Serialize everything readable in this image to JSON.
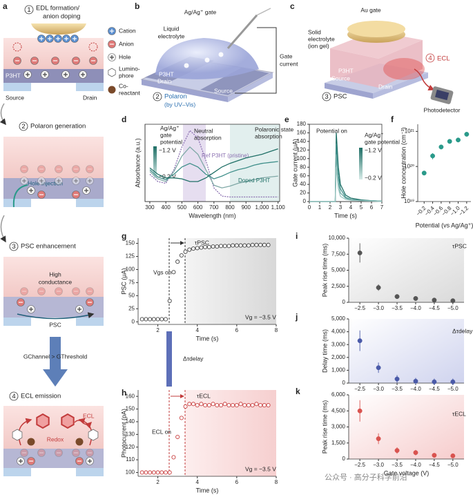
{
  "diagrams": {
    "panel_a": {
      "panel": "a",
      "steps": [
        {
          "number": "1",
          "title": [
            "EDL formation/",
            "anion doping"
          ]
        },
        {
          "number": "2",
          "title": [
            "Polaron generation"
          ]
        },
        {
          "number": "3",
          "title": [
            "PSC enhancement"
          ]
        },
        {
          "number": "4",
          "title": [
            "ECL emission"
          ]
        }
      ],
      "legend": [
        [
          "Cation"
        ],
        [
          "Anion"
        ],
        [
          "Hole"
        ],
        [
          "Lumino-",
          "phore"
        ],
        [
          "Co-",
          "reactant"
        ]
      ],
      "p3ht": "P3HT",
      "source": "Source",
      "drain": "Drain",
      "hole_injection": "Hole injection",
      "high_conductance": [
        "High",
        "conductance"
      ],
      "psc": "PSC",
      "condition": "GChannel > GThreshold",
      "ecl": "ECL",
      "redox": "Redox"
    },
    "panel_b": {
      "panel": "b",
      "gate": "Ag/Ag⁺ gate",
      "electrolyte": [
        "Liquid",
        "electrolyte"
      ],
      "gate_current": [
        "Gate",
        "current"
      ],
      "p3ht": "P3HT",
      "drain": "Drain",
      "source": "Source",
      "step_number": "2",
      "step": "Polaron",
      "step_note": "(by UV–Vis)"
    },
    "panel_c": {
      "panel": "c",
      "gate": "Au gate",
      "electrolyte": [
        "Solid",
        "electrolyte",
        "(ion gel)"
      ],
      "ecl_number": "4",
      "ecl": "ECL",
      "p3ht": "P3HT",
      "source": "Source",
      "drain": "Drain",
      "psc_number": "3",
      "psc": "PSC",
      "detector": "Photodetector"
    }
  },
  "watermark": "公众号 · 高分子科学前沿",
  "chart_data": [
    {
      "panel": "d",
      "type": "line",
      "x_label": "Wavelength (nm)",
      "y_label": "Absorbance (a.u.)",
      "x": [
        300,
        350,
        400,
        450,
        500,
        550,
        600,
        650,
        700,
        750,
        800,
        850,
        900,
        950,
        1000,
        1050,
        1100
      ],
      "xlim": [
        270,
        1110
      ],
      "xticks": [
        300,
        400,
        500,
        600,
        700,
        800,
        900,
        {
          "value": 1000,
          "label": "1,000"
        },
        {
          "value": 1100,
          "label": "1,100"
        }
      ],
      "ylim": [
        0,
        0.85
      ],
      "series": [
        {
          "name": "Ref P3HT (pristine)",
          "color": "#8a6fb0",
          "dash": true,
          "values": [
            0.3,
            0.22,
            0.2,
            0.35,
            0.6,
            0.78,
            0.7,
            0.45,
            0.15,
            0.06,
            0.05,
            0.05,
            0.05,
            0.05,
            0.05,
            0.05,
            0.05
          ]
        },
        {
          "color": "#7fa8a6",
          "values": [
            0.33,
            0.25,
            0.22,
            0.33,
            0.5,
            0.6,
            0.52,
            0.35,
            0.18,
            0.15,
            0.17,
            0.2,
            0.22,
            0.24,
            0.26,
            0.27,
            0.28
          ]
        },
        {
          "color": "#3f8f8a",
          "values": [
            0.35,
            0.27,
            0.24,
            0.3,
            0.38,
            0.42,
            0.38,
            0.3,
            0.25,
            0.28,
            0.32,
            0.35,
            0.37,
            0.4,
            0.42,
            0.43,
            0.44
          ]
        },
        {
          "name": "Doped P3HT",
          "color": "#1f6f66",
          "values": [
            0.37,
            0.3,
            0.26,
            0.26,
            0.25,
            0.22,
            0.22,
            0.26,
            0.32,
            0.38,
            0.42,
            0.45,
            0.48,
            0.5,
            0.52,
            0.55,
            0.58
          ]
        }
      ],
      "annotations": [
        "Ag/Ag⁺",
        "gate",
        "potential",
        "−1.2 V",
        "−0.2 V",
        "Neutral",
        "absorption",
        "Polaronic state",
        "absorption"
      ]
    },
    {
      "panel": "e",
      "type": "line",
      "x_label": "Time (s)",
      "y_label": "Gate current (μA)",
      "x": [
        0,
        1,
        2,
        2.5,
        2.6,
        2.8,
        3,
        3.5,
        4,
        5,
        6,
        7
      ],
      "xlim": [
        0,
        7
      ],
      "xticks": [
        0,
        1,
        2,
        3,
        4,
        5,
        6,
        7
      ],
      "ylim": [
        0,
        180
      ],
      "yticks": [
        0,
        20,
        40,
        60,
        80,
        100,
        120,
        140,
        160,
        180
      ],
      "series": [
        {
          "color": "#1f6f66",
          "values": [
            0,
            0,
            0,
            0,
            160,
            80,
            40,
            15,
            8,
            4,
            2,
            1
          ]
        },
        {
          "color": "#3f8f8a",
          "values": [
            0,
            0,
            0,
            0,
            135,
            60,
            30,
            10,
            5,
            3,
            2,
            1
          ]
        },
        {
          "color": "#6aa9a3",
          "values": [
            0,
            0,
            0,
            0,
            110,
            45,
            20,
            8,
            4,
            2,
            1,
            1
          ]
        },
        {
          "color": "#9cc7c2",
          "values": [
            0,
            0,
            0,
            0,
            80,
            30,
            12,
            5,
            3,
            2,
            1,
            0
          ]
        }
      ],
      "annotations": [
        "Potential on",
        "Ag/Ag⁺",
        "gate potential",
        "−1.2 V",
        "−0.2 V"
      ]
    },
    {
      "panel": "f",
      "type": "scatter",
      "x_label": "Potential (vs Ag/Ag⁺)",
      "y_label": "Hole concentration (cm⁻³)",
      "x": [
        -0.2,
        -0.4,
        -0.6,
        -0.8,
        -1.0,
        -1.2
      ],
      "values": [
        6.5e+19,
        2e+20,
        3.6e+20,
        5.2e+20,
        5.7e+20,
        8.3e+20
      ],
      "errors": [
        5e+18,
        4e+19,
        4e+19,
        3e+19,
        3e+19,
        3e+19
      ],
      "xlim": [
        -0.05,
        -1.3
      ],
      "xticks": [
        {
          "value": -0.2,
          "label": "−0.2"
        },
        {
          "value": -0.4,
          "label": "−0.4"
        },
        {
          "value": -0.6,
          "label": "−0.6"
        },
        {
          "value": -0.8,
          "label": "−0.8"
        },
        {
          "value": -1.0,
          "label": "−1.0"
        },
        {
          "value": -1.2,
          "label": "−1.2"
        }
      ],
      "ylog": true,
      "ylim": [
        1e+19,
        1.6e+21
      ],
      "yticks": [
        {
          "value": 1e+19,
          "label": "10¹⁹"
        },
        {
          "value": 1e+20,
          "label": "10²⁰"
        },
        {
          "value": 1e+21,
          "label": "10²¹"
        }
      ],
      "color": "#2a9a8a"
    },
    {
      "panel": "g",
      "type": "scatter",
      "hollow": true,
      "x_label": "Time (s)",
      "y_label": "PSC (μA)",
      "x": [
        1.2,
        1.4,
        1.6,
        1.8,
        2.0,
        2.2,
        2.4,
        2.6,
        2.8,
        3.0,
        3.2,
        3.4,
        3.6,
        3.8,
        4.0,
        4.2,
        4.4,
        4.6,
        4.8,
        5.0,
        5.2,
        5.4,
        5.6,
        5.8,
        6.0,
        6.2,
        6.4,
        6.6,
        6.8,
        7.0,
        7.2,
        7.4,
        7.6
      ],
      "values": [
        5,
        5,
        5,
        5,
        5,
        5,
        5,
        40,
        95,
        115,
        127,
        134,
        138,
        140,
        141,
        142,
        143,
        143,
        144,
        144,
        145,
        145,
        145,
        146,
        146,
        146,
        146,
        146,
        147,
        147,
        147,
        147,
        147
      ],
      "xlim": [
        1,
        8
      ],
      "xticks": [
        2,
        4,
        6,
        8
      ],
      "ylim": [
        -5,
        160
      ],
      "yticks": [
        0,
        25,
        50,
        75,
        100,
        125,
        150
      ],
      "color": "#444444",
      "annotations": [
        "Vgs on",
        "τPSC",
        "Vg = −3.5 V",
        "Δτdelay"
      ]
    },
    {
      "panel": "h",
      "type": "scatter",
      "hollow": true,
      "x_label": "Time (s)",
      "y_label": "Photocurrent (pA)",
      "x": [
        1.2,
        1.4,
        1.6,
        1.8,
        2.0,
        2.2,
        2.4,
        2.6,
        2.8,
        3.0,
        3.2,
        3.4,
        3.6,
        3.8,
        4.0,
        4.2,
        4.4,
        4.6,
        4.8,
        5.0,
        5.2,
        5.4,
        5.6,
        5.8,
        6.0,
        6.2,
        6.4,
        6.6,
        6.8,
        7.0,
        7.2,
        7.4,
        7.6
      ],
      "values": [
        100,
        100,
        100,
        100,
        100,
        100,
        100,
        100,
        112,
        128,
        143,
        152,
        154,
        154,
        153,
        154,
        153,
        153,
        154,
        153,
        153,
        154,
        153,
        153,
        153,
        154,
        153,
        153,
        153,
        154,
        153,
        153,
        153
      ],
      "xlim": [
        1,
        8
      ],
      "xticks": [
        2,
        4,
        6,
        8
      ],
      "ylim": [
        97,
        165
      ],
      "yticks": [
        100,
        110,
        120,
        130,
        140,
        150,
        160
      ],
      "color": "#c94040",
      "annotations": [
        "ECL on",
        "τECL",
        "Vg = −3.5 V"
      ]
    },
    {
      "panel": "i",
      "type": "scatter",
      "y_label": "Peak rise time (ms)",
      "x": [
        -2.5,
        -3.0,
        -3.5,
        -4.0,
        -4.5,
        -5.0
      ],
      "values": [
        7700,
        2300,
        900,
        600,
        350,
        250
      ],
      "errors": [
        1500,
        500,
        200,
        100,
        100,
        50
      ],
      "xlim": [
        -2.2,
        -5.3
      ],
      "xticks": [
        {
          "value": -2.5,
          "label": "−2.5"
        },
        {
          "value": -3.0,
          "label": "−3.0"
        },
        {
          "value": -3.5,
          "label": "−3.5"
        },
        {
          "value": -4.0,
          "label": "−4.0"
        },
        {
          "value": -4.5,
          "label": "−4.5"
        },
        {
          "value": -5.0,
          "label": "−5.0"
        }
      ],
      "ylim": [
        0,
        10000
      ],
      "yticks": [
        0,
        {
          "value": 2500,
          "label": "2,500"
        },
        {
          "value": 5000,
          "label": "5,000"
        },
        {
          "value": 7500,
          "label": "7,500"
        },
        {
          "value": 10000,
          "label": "10,000"
        }
      ],
      "color": "#555555",
      "annotations": [
        "τPSC"
      ]
    },
    {
      "panel": "j",
      "type": "scatter",
      "y_label": "Delay time (ms)",
      "x": [
        -2.5,
        -3.0,
        -3.5,
        -4.0,
        -4.5,
        -5.0
      ],
      "values": [
        3300,
        1200,
        320,
        150,
        100,
        100
      ],
      "errors": [
        800,
        400,
        300,
        250,
        250,
        250
      ],
      "xlim": [
        -2.2,
        -5.3
      ],
      "xticks": [
        {
          "value": -2.5,
          "label": "−2.5"
        },
        {
          "value": -3.0,
          "label": "−3.0"
        },
        {
          "value": -3.5,
          "label": "−3.5"
        },
        {
          "value": -4.0,
          "label": "−4.0"
        },
        {
          "value": -4.5,
          "label": "−4.5"
        },
        {
          "value": -5.0,
          "label": "−5.0"
        }
      ],
      "ylim": [
        0,
        5000
      ],
      "yticks": [
        0,
        {
          "value": 1000,
          "label": "1,000"
        },
        {
          "value": 2000,
          "label": "2,000"
        },
        {
          "value": 3000,
          "label": "3,000"
        },
        {
          "value": 4000,
          "label": "4,000"
        },
        {
          "value": 5000,
          "label": "5,000"
        }
      ],
      "color": "#4a5aa8",
      "annotations": [
        "Δτdelay"
      ]
    },
    {
      "panel": "k",
      "type": "scatter",
      "x_label": "Gate voltage (V)",
      "y_label": "Peak rise time (ms)",
      "x": [
        -2.5,
        -3.0,
        -3.5,
        -4.0,
        -4.5,
        -5.0
      ],
      "values": [
        4500,
        1900,
        800,
        600,
        350,
        300
      ],
      "errors": [
        1000,
        500,
        300,
        250,
        150,
        100
      ],
      "xlim": [
        -2.2,
        -5.3
      ],
      "xticks": [
        {
          "value": -2.5,
          "label": "−2.5"
        },
        {
          "value": -3.0,
          "label": "−3.0"
        },
        {
          "value": -3.5,
          "label": "−3.5"
        },
        {
          "value": -4.0,
          "label": "−4.0"
        },
        {
          "value": -4.5,
          "label": "−4.5"
        },
        {
          "value": -5.0,
          "label": "−5.0"
        }
      ],
      "ylim": [
        0,
        6000
      ],
      "yticks": [
        0,
        {
          "value": 1500,
          "label": "1,500"
        },
        {
          "value": 3000,
          "label": "3,000"
        },
        {
          "value": 4500,
          "label": "4,500"
        },
        {
          "value": 6000,
          "label": "6,000"
        }
      ],
      "color": "#d9534f",
      "annotations": [
        "τECL"
      ]
    }
  ]
}
